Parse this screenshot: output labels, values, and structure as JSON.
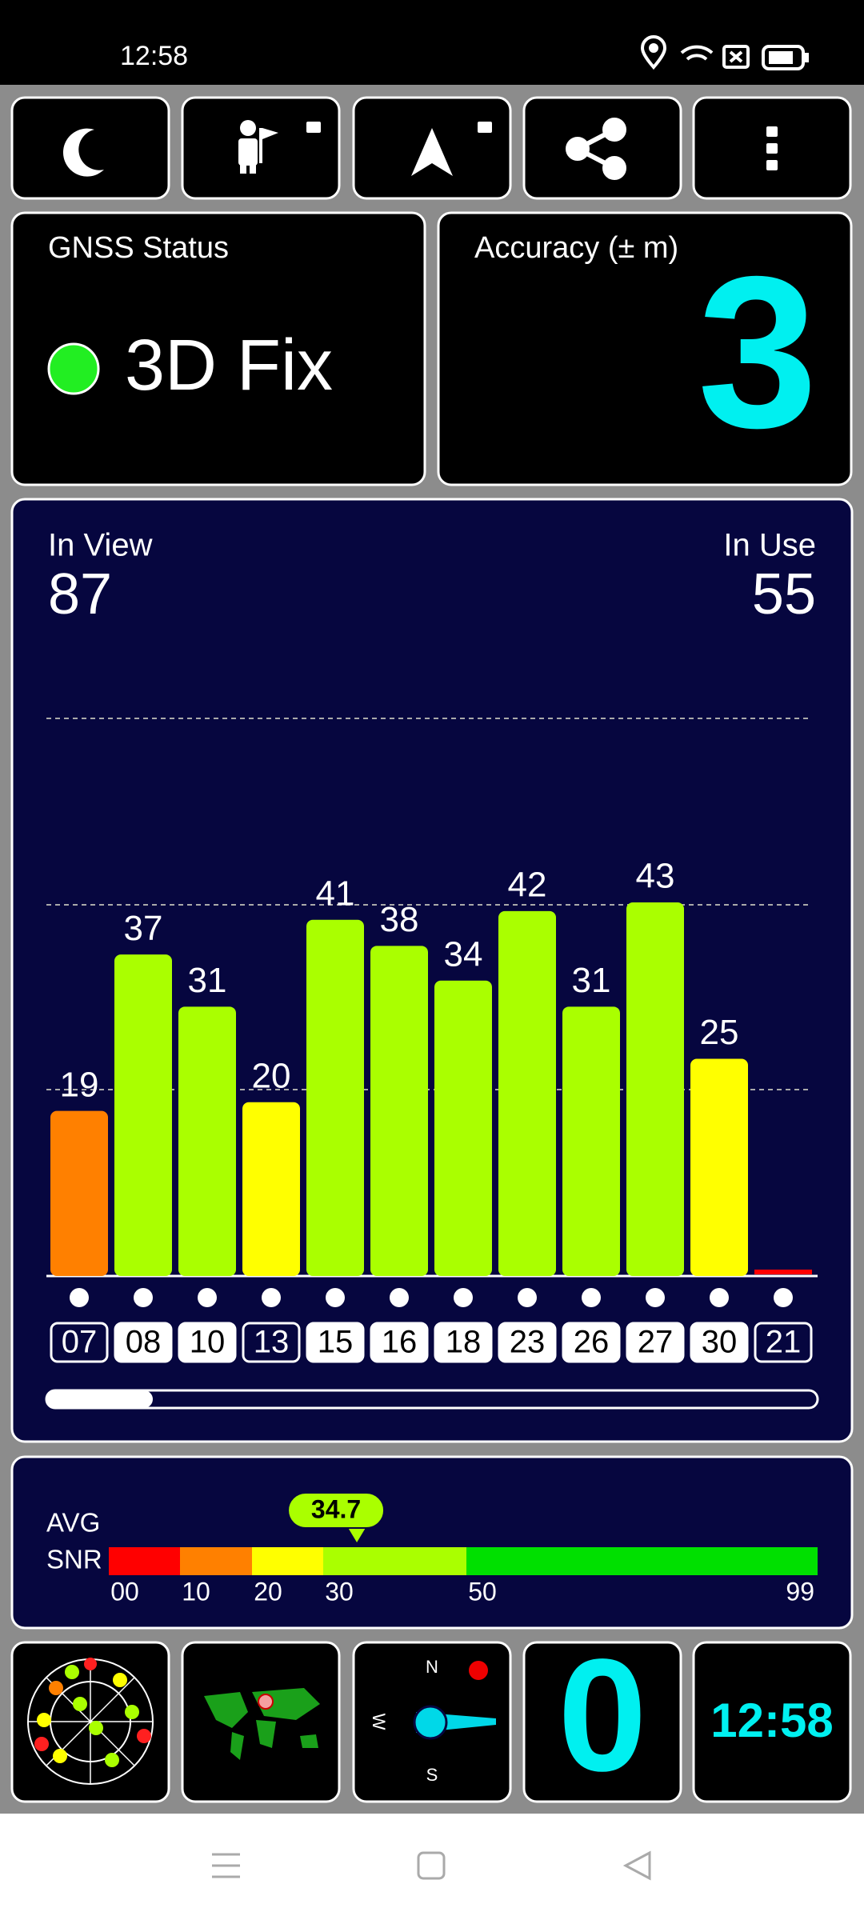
{
  "status_bar": {
    "time": "12:58"
  },
  "gnss_status": {
    "title": "GNSS Status",
    "fix": "3D Fix"
  },
  "accuracy": {
    "title": "Accuracy (± m)",
    "value": 3
  },
  "signal": {
    "in_view_label": "In View",
    "in_view": 87,
    "in_use_label": "In Use",
    "in_use": 55,
    "satellites": [
      {
        "id": "07",
        "snr": 19,
        "in_use": false
      },
      {
        "id": "08",
        "snr": 37,
        "in_use": true
      },
      {
        "id": "10",
        "snr": 31,
        "in_use": true
      },
      {
        "id": "13",
        "snr": 20,
        "in_use": false
      },
      {
        "id": "15",
        "snr": 41,
        "in_use": true
      },
      {
        "id": "16",
        "snr": 38,
        "in_use": true
      },
      {
        "id": "18",
        "snr": 34,
        "in_use": true
      },
      {
        "id": "23",
        "snr": 42,
        "in_use": true
      },
      {
        "id": "26",
        "snr": 31,
        "in_use": true
      },
      {
        "id": "27",
        "snr": 43,
        "in_use": true
      },
      {
        "id": "30",
        "snr": 25,
        "in_use": true
      },
      {
        "id": "21",
        "snr": null,
        "in_use": false
      }
    ]
  },
  "snr": {
    "label_1": "AVG",
    "label_2": "SNR",
    "average": 34.7,
    "scale": [
      {
        "value": 0,
        "label": "00"
      },
      10,
      20,
      30,
      50,
      99
    ],
    "colors": [
      "#ff0000",
      "#ff8000",
      "#ffff00",
      "#aaff00",
      "#00e000"
    ]
  },
  "compass": {
    "n": "N",
    "w": "W",
    "s": "S"
  },
  "tiles": {
    "speed": 0,
    "clock": "12:58"
  }
}
